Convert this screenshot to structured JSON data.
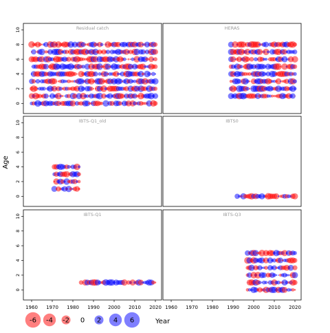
{
  "chart_data": {
    "type": "scatter",
    "subtype": "bubble-residuals",
    "xlabel": "Year",
    "ylabel": "Age",
    "xlim": [
      1957,
      2022
    ],
    "ylim": [
      -1,
      10.5
    ],
    "x_ticks": [
      1960,
      1970,
      1980,
      1990,
      2000,
      2010,
      2020
    ],
    "y_ticks": [
      0,
      2,
      4,
      6,
      8,
      10
    ],
    "colors": {
      "positive": "#0000ff",
      "negative": "#ff0000",
      "panel_title": "#999999",
      "frame": "#000000"
    },
    "legend": {
      "values": [
        -6,
        -4,
        -2,
        0,
        2,
        4,
        6
      ],
      "labels": [
        "-6",
        "-4",
        "-2",
        "0",
        "2",
        "4",
        "6"
      ],
      "x_label": "Year"
    },
    "panels": [
      {
        "title": "Residual catch",
        "years": [
          1960,
          2020
        ],
        "ages": [
          0,
          8
        ],
        "row": 0,
        "col": 0
      },
      {
        "title": "HERAS",
        "years": [
          1989,
          2020
        ],
        "ages": [
          1,
          8
        ],
        "row": 0,
        "col": 1
      },
      {
        "title": "IBTS-Q1_old",
        "years": [
          1971,
          1983
        ],
        "ages": [
          1,
          4
        ],
        "row": 1,
        "col": 0
      },
      {
        "title": "IBTS0",
        "years": [
          1992,
          2020
        ],
        "ages": [
          0,
          0
        ],
        "row": 1,
        "col": 1
      },
      {
        "title": "IBTS-Q1",
        "years": [
          1984,
          2020
        ],
        "ages": [
          1,
          1
        ],
        "row": 2,
        "col": 0
      },
      {
        "title": "IBTS-Q3",
        "years": [
          1997,
          2020
        ],
        "ages": [
          0,
          5
        ],
        "row": 2,
        "col": 1
      }
    ]
  }
}
